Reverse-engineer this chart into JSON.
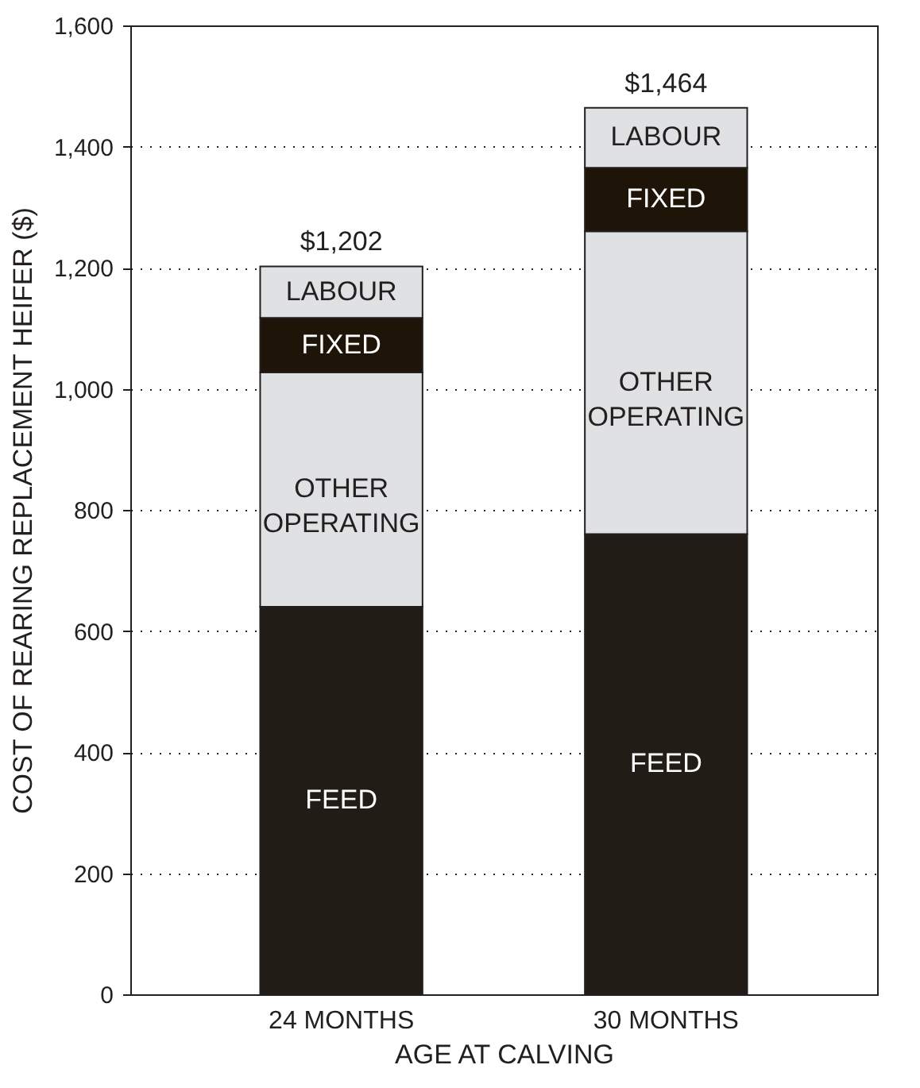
{
  "chart_data": {
    "type": "bar",
    "stacked": true,
    "xlabel": "AGE AT CALVING",
    "ylabel": "COST OF REARING REPLACEMENT HEIFER ($)",
    "categories": [
      "24 MONTHS",
      "30 MONTHS"
    ],
    "series": [
      {
        "name": "FEED",
        "color": "#221c16",
        "values": [
          640,
          760
        ]
      },
      {
        "name": "OTHER OPERATING",
        "color": "#e0e1e3",
        "values": [
          387,
          500
        ]
      },
      {
        "name": "FIXED",
        "color": "#1e1508",
        "values": [
          90,
          105
        ]
      },
      {
        "name": "LABOUR",
        "color": "#e0e1e3",
        "values": [
          85,
          99
        ]
      }
    ],
    "totals": [
      "$1,202",
      "$1,464"
    ],
    "ylim": [
      0,
      1600
    ],
    "yticks": [
      0,
      200,
      400,
      600,
      800,
      {
        "value": 1000,
        "label": "1,000"
      },
      {
        "value": 1200,
        "label": "1,200"
      },
      {
        "value": 1400,
        "label": "1,400"
      },
      {
        "value": 1600,
        "label": "1,600"
      }
    ],
    "grid": "y",
    "legend": false
  }
}
